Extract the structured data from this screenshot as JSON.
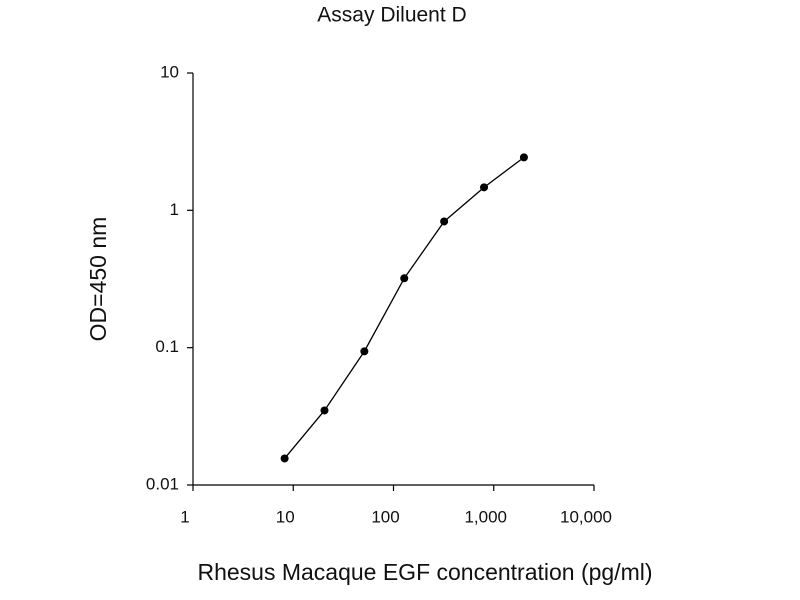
{
  "chart_data": {
    "type": "line",
    "title": "Assay Diluent D",
    "x_label": "Rhesus Macaque EGF concentration (pg/ml)",
    "y_label": "OD=450 nm",
    "x": [
      8.2,
      20.5,
      51.2,
      128,
      320,
      800,
      2000
    ],
    "series": [
      {
        "name": "Assay Diluent D",
        "color": "#000000",
        "values": [
          0.0156,
          0.0349,
          0.094,
          0.32,
          0.83,
          1.47,
          2.43
        ]
      }
    ],
    "xscale": "log",
    "yscale": "log",
    "xlim": [
      1,
      10000
    ],
    "xticks": [
      1,
      10,
      100,
      {
        "value": 1000,
        "label": "1,000"
      },
      {
        "value": 10000,
        "label": "10,000"
      }
    ],
    "ylim": [
      0.01,
      10
    ],
    "yticks": [
      0.01,
      0.1,
      1,
      10
    ],
    "grid": false
  }
}
